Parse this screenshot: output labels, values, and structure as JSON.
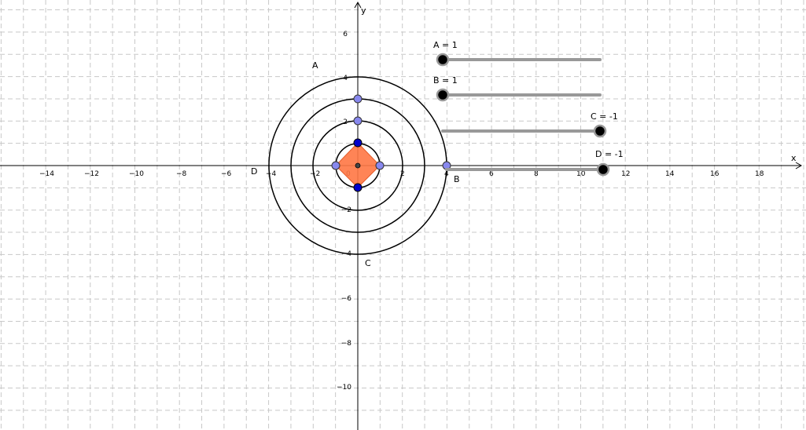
{
  "axes": {
    "x_label": "x",
    "y_label": "y",
    "origin_label": "0",
    "x_ticks": [
      "−14",
      "−12",
      "−10",
      "−8",
      "−6",
      "−4",
      "−2",
      "2",
      "4",
      "6",
      "8",
      "10",
      "12",
      "14",
      "16",
      "18"
    ],
    "y_ticks": [
      "6",
      "4",
      "2",
      "−2",
      "−4",
      "−6",
      "−8",
      "−10"
    ]
  },
  "labels": {
    "circle_a": "A",
    "circle_b": "B",
    "circle_c": "C",
    "circle_d": "D"
  },
  "sliders": [
    {
      "caption": "A = 1",
      "value": 1
    },
    {
      "caption": "B = 1",
      "value": 1
    },
    {
      "caption": "C = -1",
      "value": -1
    },
    {
      "caption": "D = -1",
      "value": -1
    }
  ],
  "circles": [
    {
      "name": "outer",
      "radius": 4
    },
    {
      "name": "second",
      "radius": 3
    },
    {
      "name": "third",
      "radius": 2
    },
    {
      "name": "inner",
      "radius": 1
    }
  ],
  "colors": {
    "grid": "#c8c8c8",
    "polygon_fill": "#ff7744",
    "polygon_stroke": "#e65c2a",
    "point_dark_blue": "#0000cc",
    "point_light": "#8888ee",
    "slider_track": "#999999"
  }
}
